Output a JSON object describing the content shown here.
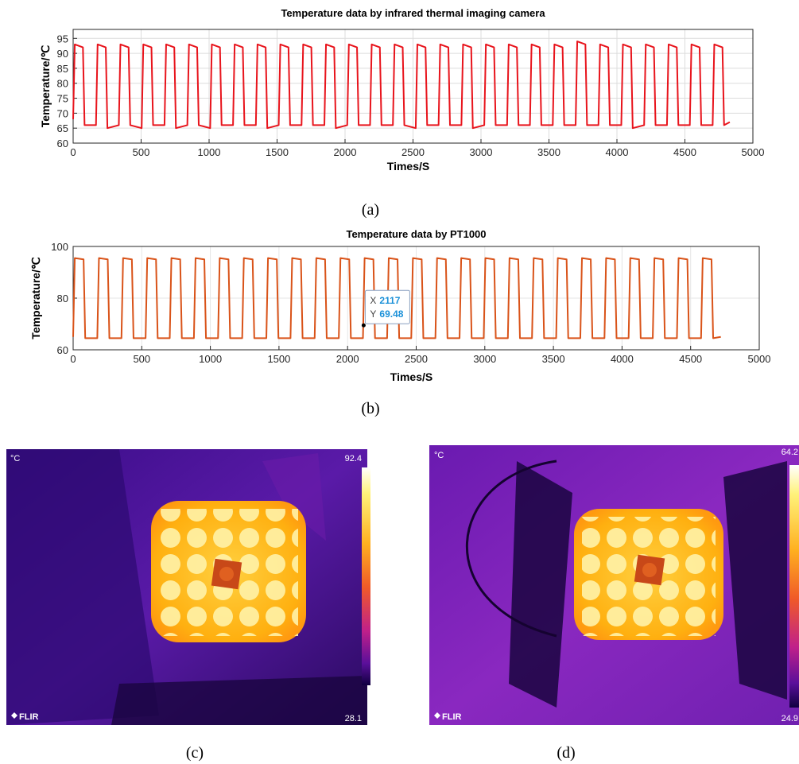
{
  "chart_data": [
    {
      "type": "line",
      "title": "Temperature data by infrared thermal imaging camera",
      "xlabel": "Times/S",
      "ylabel": "Temperature/℃",
      "caption": "(a)",
      "color": "#e8141c",
      "grid": true,
      "xlim": [
        0,
        5000
      ],
      "xticks": [
        0,
        500,
        1000,
        1500,
        2000,
        2500,
        3000,
        3500,
        4000,
        4500,
        5000
      ],
      "ylim": [
        60,
        98
      ],
      "yticks": [
        60,
        65,
        70,
        75,
        80,
        85,
        90,
        95
      ],
      "x": [
        0,
        12,
        72,
        84,
        168,
        180,
        240,
        252,
        336,
        348,
        408,
        420,
        504,
        516,
        576,
        588,
        672,
        684,
        744,
        756,
        840,
        852,
        912,
        924,
        1008,
        1020,
        1080,
        1092,
        1176,
        1188,
        1248,
        1260,
        1344,
        1356,
        1416,
        1428,
        1512,
        1524,
        1584,
        1596,
        1680,
        1692,
        1752,
        1764,
        1848,
        1860,
        1920,
        1932,
        2016,
        2028,
        2088,
        2100,
        2184,
        2196,
        2256,
        2268,
        2352,
        2364,
        2424,
        2436,
        2520,
        2532,
        2592,
        2604,
        2688,
        2700,
        2760,
        2772,
        2856,
        2868,
        2928,
        2940,
        3024,
        3036,
        3096,
        3108,
        3192,
        3204,
        3264,
        3276,
        3360,
        3372,
        3432,
        3444,
        3528,
        3540,
        3600,
        3612,
        3696,
        3708,
        3768,
        3780,
        3864,
        3876,
        3936,
        3948,
        4032,
        4044,
        4104,
        4116,
        4200,
        4212,
        4272,
        4284,
        4368,
        4380,
        4440,
        4452,
        4536,
        4548,
        4608,
        4620,
        4704,
        4716,
        4776,
        4788,
        4830
      ],
      "values": [
        68,
        93,
        92,
        66,
        66,
        93,
        92,
        65,
        66,
        93,
        92,
        66,
        65,
        93,
        92,
        66,
        66,
        93,
        92,
        65,
        66,
        93,
        92,
        66,
        65,
        93,
        92,
        66,
        66,
        93,
        92,
        66,
        66,
        93,
        92,
        65,
        66,
        93,
        92,
        66,
        66,
        93,
        92,
        66,
        66,
        93,
        92,
        65,
        66,
        93,
        92,
        66,
        66,
        93,
        92,
        66,
        66,
        93,
        92,
        66,
        65,
        93,
        92,
        66,
        66,
        93,
        92,
        66,
        66,
        93,
        92,
        65,
        66,
        93,
        92,
        66,
        66,
        93,
        92,
        66,
        66,
        93,
        92,
        66,
        66,
        93,
        92,
        66,
        66,
        94,
        93,
        66,
        66,
        93,
        92,
        66,
        66,
        93,
        92,
        65,
        66,
        93,
        92,
        66,
        66,
        93,
        92,
        66,
        66,
        93,
        92,
        66,
        66,
        93,
        92,
        66,
        67
      ]
    },
    {
      "type": "line",
      "title": "Temperature data by PT1000",
      "xlabel": "Times/S",
      "ylabel": "Temperature/℃",
      "caption": "(b)",
      "color": "#d95319",
      "grid": true,
      "xlim": [
        0,
        5000
      ],
      "xticks": [
        0,
        500,
        1000,
        1500,
        2000,
        2500,
        3000,
        3500,
        4000,
        4500,
        5000
      ],
      "ylim": [
        60,
        100
      ],
      "yticks": [
        60,
        80,
        100
      ],
      "x": [
        0,
        12,
        76,
        88,
        176,
        188,
        252,
        264,
        352,
        364,
        428,
        440,
        528,
        540,
        604,
        616,
        704,
        716,
        780,
        792,
        880,
        892,
        956,
        968,
        1056,
        1068,
        1132,
        1144,
        1232,
        1244,
        1308,
        1320,
        1408,
        1420,
        1484,
        1496,
        1584,
        1596,
        1660,
        1672,
        1760,
        1772,
        1836,
        1848,
        1936,
        1948,
        2012,
        2024,
        2112,
        2124,
        2188,
        2200,
        2288,
        2300,
        2364,
        2376,
        2464,
        2476,
        2540,
        2552,
        2640,
        2652,
        2716,
        2728,
        2816,
        2828,
        2892,
        2904,
        2992,
        3004,
        3068,
        3080,
        3168,
        3180,
        3244,
        3256,
        3344,
        3356,
        3420,
        3432,
        3520,
        3532,
        3596,
        3608,
        3696,
        3708,
        3772,
        3784,
        3872,
        3884,
        3948,
        3960,
        4048,
        4060,
        4124,
        4136,
        4224,
        4236,
        4300,
        4312,
        4400,
        4412,
        4476,
        4488,
        4576,
        4588,
        4652,
        4664,
        4720
      ],
      "values": [
        65,
        95.5,
        95,
        64.5,
        64.5,
        95.5,
        95,
        64.5,
        64.5,
        95.5,
        95,
        64.5,
        64.5,
        95.5,
        95,
        64.5,
        64.5,
        95.5,
        95,
        64.5,
        64.5,
        95.5,
        95,
        64.5,
        64.5,
        95.5,
        95,
        64.5,
        64.5,
        95.5,
        95,
        64.5,
        64.5,
        95.5,
        95,
        64.5,
        64.5,
        95.5,
        95,
        64.5,
        64.5,
        95.5,
        95,
        64.5,
        64.5,
        95.5,
        95,
        64.5,
        64.5,
        95.5,
        95,
        64.5,
        64.5,
        95.5,
        95,
        64.5,
        64.5,
        95.5,
        95,
        64.5,
        64.5,
        95.5,
        95,
        64.5,
        64.5,
        95.5,
        95,
        64.5,
        64.5,
        95.5,
        95,
        64.5,
        64.5,
        95.5,
        95,
        64.5,
        64.5,
        95.5,
        95,
        64.5,
        64.5,
        95.5,
        95,
        64.5,
        64.5,
        95.5,
        95,
        64.5,
        64.5,
        95.5,
        95,
        64.5,
        64.5,
        95.5,
        95,
        64.5,
        64.5,
        95.5,
        95,
        64.5,
        64.5,
        95.5,
        95,
        64.5,
        64.5,
        95.5,
        95,
        64.5,
        65
      ],
      "datatip": {
        "x_label": "X",
        "x": 2117,
        "y_label": "Y",
        "y": 69.48
      }
    }
  ],
  "images": [
    {
      "caption": "(c)",
      "unit": "°C",
      "scale_max": 92.4,
      "scale_min": 28.1,
      "brand": "FLIR"
    },
    {
      "caption": "(d)",
      "unit": "°C",
      "scale_max": 64.2,
      "scale_min": 24.9,
      "brand": "FLIR"
    }
  ]
}
